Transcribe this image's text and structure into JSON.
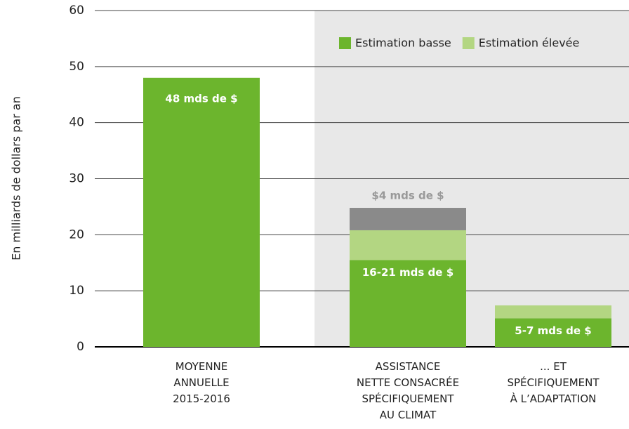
{
  "chart_data": {
    "type": "stacked-bar",
    "y_label": "En milliards de dollars par an",
    "categories": [
      "MOYENNE\nANNUELLE\n2015-2016",
      "ASSISTANCE\nNETTE CONSACRÉE\nSPÉCIFIQUEMENT\nAU CLIMAT",
      "... ET\nSPÉCIFIQUEMENT\nÀ L’ADAPTATION"
    ],
    "series": [
      {
        "name": "Estimation basse",
        "color": "#6cb52d",
        "values": [
          48,
          15.5,
          5.1
        ]
      },
      {
        "name": "Estimation élevée",
        "color": "#b3d682",
        "values": [
          null,
          5.3,
          2.3
        ]
      },
      {
        "color": "#8a8a8a",
        "values": [
          null,
          4,
          null
        ],
        "value_labels": [
          null,
          "$4 mds de $",
          null
        ]
      }
    ],
    "bar_labels": [
      "48 mds de $",
      "16-21 mds de $",
      "5-7 mds de $"
    ],
    "ylim": [
      0,
      60
    ],
    "yticks": [
      0,
      10,
      20,
      30,
      40,
      50,
      60
    ],
    "grid": true
  }
}
